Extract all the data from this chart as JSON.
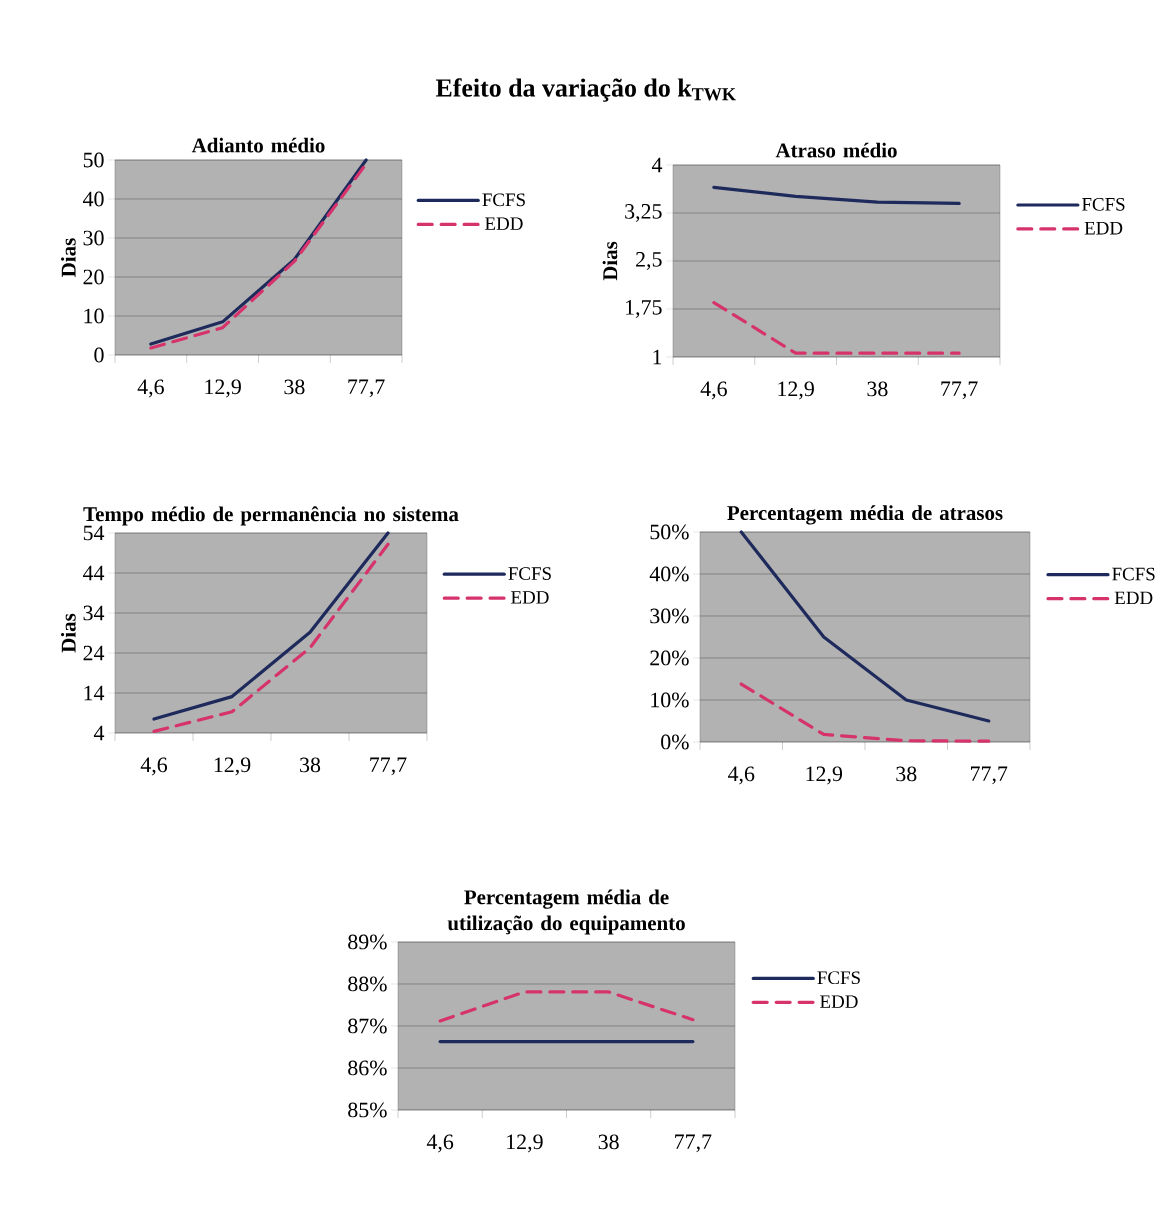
{
  "chart_data": [
    {
      "type": "other",
      "title": "Efeito da variação do k$_{TWK}$"
    },
    {
      "type": "line",
      "title": "Adianto médio",
      "ylabel": "Dias",
      "categories": [
        "4,6",
        "12,9",
        "38",
        "77,7"
      ],
      "ylim": [
        0,
        50
      ],
      "yticks": [
        0,
        10,
        20,
        30,
        40,
        50
      ],
      "grid": "y",
      "legend": "right",
      "series": [
        {
          "name": "FCFS",
          "color": "#1f2a5c",
          "line_style": "solid",
          "values": [
            2.8,
            8.5,
            24.5,
            50
          ]
        },
        {
          "name": "EDD",
          "color": "#d6336c",
          "line_style": "dashed",
          "values": [
            1.8,
            7,
            24,
            49
          ]
        }
      ]
    },
    {
      "type": "line",
      "title": "Atraso médio",
      "ylabel": "Dias",
      "categories": [
        "4,6",
        "12,9",
        "38",
        "77,7"
      ],
      "ylim": [
        1,
        4
      ],
      "yticks": [
        1,
        {
          "value": 1.75,
          "label": "1,75"
        },
        {
          "value": 2.5,
          "label": "2,5"
        },
        {
          "value": 3.25,
          "label": "3,25"
        },
        4
      ],
      "grid": "y",
      "legend": "right",
      "series": [
        {
          "name": "FCFS",
          "color": "#1f2a5c",
          "line_style": "solid",
          "values": [
            3.65,
            3.51,
            3.42,
            3.4
          ]
        },
        {
          "name": "EDD",
          "color": "#d6336c",
          "line_style": "dashed",
          "values": [
            1.85,
            1.06,
            1.06,
            1.06
          ]
        }
      ]
    },
    {
      "type": "line",
      "title": "Tempo médio de permanência no sistema",
      "ylabel": "Dias",
      "categories": [
        "4,6",
        "12,9",
        "38",
        "77,7"
      ],
      "ylim": [
        4,
        54
      ],
      "yticks": [
        4,
        14,
        24,
        34,
        44,
        54
      ],
      "grid": "y",
      "legend": "right",
      "series": [
        {
          "name": "FCFS",
          "color": "#1f2a5c",
          "line_style": "solid",
          "values": [
            7.5,
            13.1,
            29.2,
            54
          ]
        },
        {
          "name": "EDD",
          "color": "#d6336c",
          "line_style": "dashed",
          "values": [
            4.4,
            9.3,
            25.3,
            51.2
          ]
        }
      ]
    },
    {
      "type": "line",
      "title": "Percentagem média de atrasos",
      "categories": [
        "4,6",
        "12,9",
        "38",
        "77,7"
      ],
      "ylim": [
        0,
        50
      ],
      "yticks": [
        {
          "value": 0,
          "label": "0%"
        },
        {
          "value": 10,
          "label": "10%"
        },
        {
          "value": 20,
          "label": "20%"
        },
        {
          "value": 30,
          "label": "30%"
        },
        {
          "value": 40,
          "label": "40%"
        },
        {
          "value": 50,
          "label": "50%"
        }
      ],
      "grid": "y",
      "legend": "right",
      "series": [
        {
          "name": "FCFS",
          "color": "#1f2a5c",
          "line_style": "solid",
          "values": [
            50,
            25,
            10,
            5
          ]
        },
        {
          "name": "EDD",
          "color": "#d6336c",
          "line_style": "dashed",
          "values": [
            13.8,
            1.8,
            0.3,
            0.2
          ]
        }
      ]
    },
    {
      "type": "line",
      "title": "Percentagem média de utilização do equipamento",
      "categories": [
        "4,6",
        "12,9",
        "38",
        "77,7"
      ],
      "ylim": [
        85,
        89
      ],
      "yticks": [
        {
          "value": 85,
          "label": "85%"
        },
        {
          "value": 86,
          "label": "86%"
        },
        {
          "value": 87,
          "label": "87%"
        },
        {
          "value": 88,
          "label": "88%"
        },
        {
          "value": 89,
          "label": "89%"
        }
      ],
      "grid": "y",
      "legend": "right",
      "series": [
        {
          "name": "FCFS",
          "color": "#1f2a5c",
          "line_style": "solid",
          "values": [
            86.63,
            86.63,
            86.63,
            86.63
          ]
        },
        {
          "name": "EDD",
          "color": "#d6336c",
          "line_style": "dashed",
          "values": [
            87.12,
            87.81,
            87.81,
            87.15
          ]
        }
      ]
    }
  ]
}
